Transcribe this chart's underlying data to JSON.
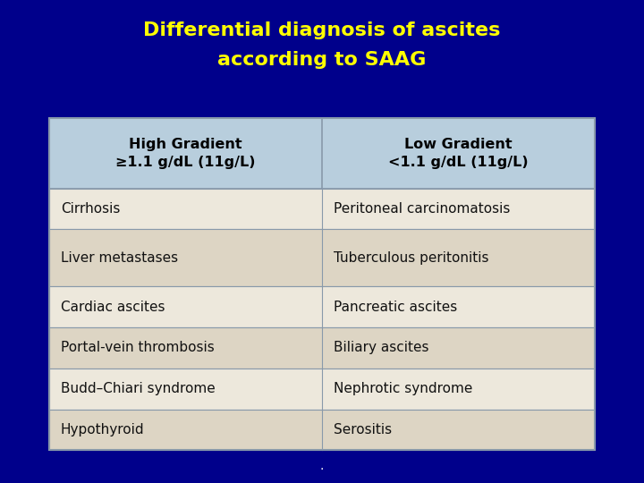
{
  "title_line1": "Differential diagnosis of ascites",
  "title_line2": "according to SAAG",
  "title_color": "#FFFF00",
  "background_color": "#00008B",
  "header_bg_color": "#B8CEDD",
  "row_bg_color_light": "#EDE8DC",
  "row_bg_color_alt": "#DDD5C4",
  "table_border_color": "#8899AA",
  "header_text_color": "#000000",
  "cell_text_color": "#111111",
  "col1_header": "High Gradient\n≥1.1 g/dL (11g/L)",
  "col2_header": "Low Gradient\n<1.1 g/dL (11g/L)",
  "rows": [
    [
      "Cirrhosis",
      "Peritoneal carcinomatosis"
    ],
    [
      "Liver metastases",
      "Tuberculous peritonitis"
    ],
    [
      "Cardiac ascites",
      "Pancreatic ascites"
    ],
    [
      "Portal-vein thrombosis",
      "Biliary ascites"
    ],
    [
      "Budd–Chiari syndrome",
      "Nephrotic syndrome"
    ],
    [
      "Hypothyroid",
      "Serositis"
    ]
  ],
  "row_heights": [
    1.0,
    1.4,
    1.0,
    1.0,
    1.0,
    1.0
  ],
  "figsize": [
    7.2,
    5.4
  ],
  "dpi": 100
}
